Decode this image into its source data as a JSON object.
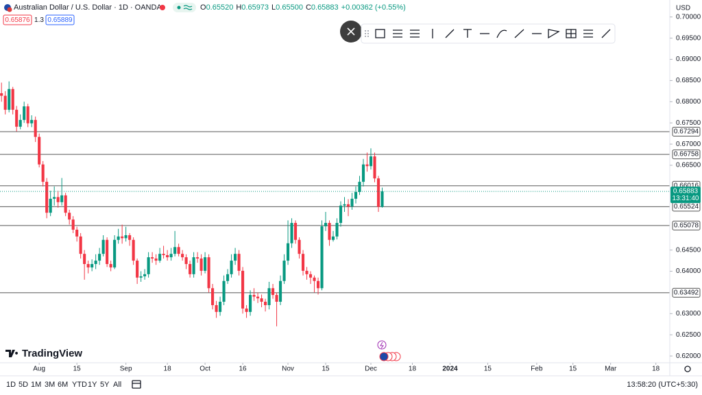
{
  "header": {
    "symbol": "Australian Dollar / U.S. Dollar · 1D · OANDA",
    "ohlc": [
      {
        "key": "O",
        "value": "0.65520"
      },
      {
        "key": "H",
        "value": "0.65973"
      },
      {
        "key": "L",
        "value": "0.65500"
      },
      {
        "key": "C",
        "value": "0.65883"
      }
    ],
    "change": "+0.00362 (+0.55%)",
    "sell": "0.65876",
    "spread": "1.3",
    "buy": "0.65889"
  },
  "watermark": "TradingView",
  "bottom_bar": {
    "ranges": [
      "1D",
      "5D",
      "1M",
      "3M",
      "6M",
      "YTD",
      "1Y",
      "5Y",
      "All"
    ],
    "clock": "13:58:20 (UTC+5:30)"
  },
  "chart_data": {
    "type": "candlestick",
    "currency": "USD",
    "up_color": "#089981",
    "down_color": "#f23645",
    "open": [
      0.682,
      0.6814,
      0.6781,
      0.683,
      0.6781,
      0.6741,
      0.6757,
      0.6789,
      0.6749,
      0.6757,
      0.6717,
      0.6652,
      0.6611,
      0.6538,
      0.6571,
      0.6575,
      0.6563,
      0.6579,
      0.6538,
      0.6522,
      0.6498,
      0.6482,
      0.6441,
      0.6417,
      0.6409,
      0.6417,
      0.6425,
      0.6441,
      0.6474,
      0.6417,
      0.6409,
      0.6474,
      0.6482,
      0.6478,
      0.6485,
      0.6474,
      0.6425,
      0.6385,
      0.6388,
      0.6393,
      0.6433,
      0.643,
      0.6425,
      0.6441,
      0.6438,
      0.6433,
      0.6441,
      0.6457,
      0.6441,
      0.6433,
      0.6417,
      0.6393,
      0.6433,
      0.643,
      0.6401,
      0.6433,
      0.636,
      0.632,
      0.6304,
      0.6328,
      0.6377,
      0.6393,
      0.6425,
      0.6441,
      0.6401,
      0.6312,
      0.6304,
      0.6344,
      0.634,
      0.6336,
      0.6328,
      0.632,
      0.636,
      0.6344,
      0.6328,
      0.6377,
      0.6425,
      0.6466,
      0.6514,
      0.6474,
      0.6441,
      0.6401,
      0.6393,
      0.6385,
      0.6377,
      0.636,
      0.6506,
      0.6514,
      0.6474,
      0.6482,
      0.6514,
      0.6555,
      0.6558,
      0.6553,
      0.6571,
      0.6587,
      0.6611,
      0.6652,
      0.6648,
      0.6671,
      0.6619,
      0.6552
    ],
    "high": [
      0.6845,
      0.6825,
      0.6848,
      0.6835,
      0.679,
      0.677,
      0.68,
      0.6795,
      0.6768,
      0.6765,
      0.6725,
      0.666,
      0.662,
      0.659,
      0.66,
      0.659,
      0.662,
      0.6585,
      0.6545,
      0.653,
      0.6505,
      0.649,
      0.645,
      0.6425,
      0.6428,
      0.644,
      0.6455,
      0.6485,
      0.648,
      0.6425,
      0.6485,
      0.65,
      0.651,
      0.6505,
      0.649,
      0.648,
      0.643,
      0.64,
      0.6405,
      0.6445,
      0.6445,
      0.644,
      0.6455,
      0.646,
      0.645,
      0.6455,
      0.6495,
      0.6465,
      0.645,
      0.644,
      0.6425,
      0.6445,
      0.6445,
      0.644,
      0.6445,
      0.644,
      0.637,
      0.633,
      0.634,
      0.639,
      0.6405,
      0.644,
      0.6455,
      0.645,
      0.641,
      0.632,
      0.6355,
      0.636,
      0.635,
      0.6345,
      0.6335,
      0.6375,
      0.637,
      0.635,
      0.639,
      0.644,
      0.652,
      0.6525,
      0.652,
      0.648,
      0.645,
      0.641,
      0.64,
      0.639,
      0.6385,
      0.652,
      0.654,
      0.652,
      0.6495,
      0.6525,
      0.6565,
      0.6575,
      0.657,
      0.6585,
      0.66,
      0.6625,
      0.6665,
      0.668,
      0.669,
      0.668,
      0.6625,
      0.65973
    ],
    "low": [
      0.68,
      0.677,
      0.6775,
      0.677,
      0.673,
      0.6735,
      0.675,
      0.674,
      0.674,
      0.6705,
      0.6645,
      0.66,
      0.6525,
      0.653,
      0.6555,
      0.655,
      0.6555,
      0.653,
      0.651,
      0.649,
      0.647,
      0.643,
      0.638,
      0.6395,
      0.64,
      0.6405,
      0.6415,
      0.6435,
      0.641,
      0.64,
      0.6405,
      0.6465,
      0.6465,
      0.647,
      0.646,
      0.6415,
      0.637,
      0.6375,
      0.638,
      0.6385,
      0.642,
      0.6415,
      0.642,
      0.643,
      0.6425,
      0.6425,
      0.6435,
      0.6435,
      0.6425,
      0.6405,
      0.6385,
      0.6385,
      0.642,
      0.639,
      0.6395,
      0.635,
      0.631,
      0.629,
      0.6295,
      0.632,
      0.637,
      0.6385,
      0.6415,
      0.639,
      0.63,
      0.629,
      0.6295,
      0.633,
      0.6325,
      0.6315,
      0.6305,
      0.631,
      0.6335,
      0.627,
      0.632,
      0.637,
      0.6415,
      0.6455,
      0.6465,
      0.643,
      0.639,
      0.638,
      0.637,
      0.635,
      0.6345,
      0.6355,
      0.6495,
      0.646,
      0.647,
      0.6475,
      0.6505,
      0.654,
      0.653,
      0.6545,
      0.656,
      0.658,
      0.66,
      0.6635,
      0.664,
      0.661,
      0.654,
      0.655
    ],
    "close": [
      0.6814,
      0.6781,
      0.683,
      0.6781,
      0.6741,
      0.6757,
      0.6789,
      0.6749,
      0.6757,
      0.6717,
      0.6652,
      0.6611,
      0.6538,
      0.6571,
      0.6575,
      0.6563,
      0.6579,
      0.6538,
      0.6522,
      0.6498,
      0.6482,
      0.6441,
      0.6417,
      0.6409,
      0.6417,
      0.6425,
      0.6441,
      0.6474,
      0.6417,
      0.6409,
      0.6474,
      0.6482,
      0.6478,
      0.6485,
      0.6474,
      0.6425,
      0.6385,
      0.6388,
      0.6393,
      0.6433,
      0.643,
      0.6425,
      0.6441,
      0.6438,
      0.6433,
      0.6441,
      0.6457,
      0.6441,
      0.6433,
      0.6417,
      0.6393,
      0.6433,
      0.643,
      0.6401,
      0.6433,
      0.636,
      0.632,
      0.6304,
      0.6328,
      0.6377,
      0.6393,
      0.6425,
      0.6441,
      0.6401,
      0.6312,
      0.6304,
      0.6344,
      0.634,
      0.6336,
      0.6328,
      0.632,
      0.636,
      0.6344,
      0.6328,
      0.6377,
      0.6425,
      0.6466,
      0.6514,
      0.6474,
      0.6441,
      0.6401,
      0.6393,
      0.6385,
      0.6377,
      0.636,
      0.6506,
      0.6514,
      0.6474,
      0.6482,
      0.6514,
      0.6555,
      0.6558,
      0.6553,
      0.6571,
      0.6587,
      0.6611,
      0.6652,
      0.6648,
      0.6671,
      0.6619,
      0.6552,
      0.65883
    ],
    "levels": [
      0.67294,
      0.66758,
      0.66016,
      0.65524,
      0.65078,
      0.63492
    ],
    "level_color": "#555555",
    "last_price": 0.65883,
    "countdown": "13:31:40",
    "ylim": [
      0.6184,
      0.704
    ],
    "yticks": [
      {
        "value": 0.7,
        "label": "0.70000"
      },
      {
        "value": 0.695,
        "label": "0.69500"
      },
      {
        "value": 0.69,
        "label": "0.69000"
      },
      {
        "value": 0.685,
        "label": "0.68500"
      },
      {
        "value": 0.68,
        "label": "0.68000"
      },
      {
        "value": 0.675,
        "label": "0.67500"
      },
      {
        "value": 0.67,
        "label": "0.67000"
      },
      {
        "value": 0.665,
        "label": "0.66500"
      },
      {
        "value": 0.645,
        "label": "0.64500"
      },
      {
        "value": 0.64,
        "label": "0.64000"
      },
      {
        "value": 0.63,
        "label": "0.63000"
      },
      {
        "value": 0.625,
        "label": "0.62500"
      },
      {
        "value": 0.62,
        "label": "0.62000"
      }
    ],
    "xlim": [
      -0.4,
      177.3
    ],
    "xticks": [
      {
        "value": 10,
        "label": "Aug"
      },
      {
        "value": 20,
        "label": "15"
      },
      {
        "value": 33,
        "label": "Sep"
      },
      {
        "value": 44,
        "label": "18"
      },
      {
        "value": 54,
        "label": "Oct"
      },
      {
        "value": 64,
        "label": "16"
      },
      {
        "value": 76,
        "label": "Nov"
      },
      {
        "value": 86,
        "label": "15"
      },
      {
        "value": 98,
        "label": "Dec"
      },
      {
        "value": 109,
        "label": "18"
      },
      {
        "value": 119,
        "label": "2024"
      },
      {
        "value": 129,
        "label": "15"
      },
      {
        "value": 142,
        "label": "Feb"
      },
      {
        "value": 151.6,
        "label": "15"
      },
      {
        "value": 161.6,
        "label": "Mar"
      },
      {
        "value": 173.6,
        "label": "18"
      }
    ]
  }
}
